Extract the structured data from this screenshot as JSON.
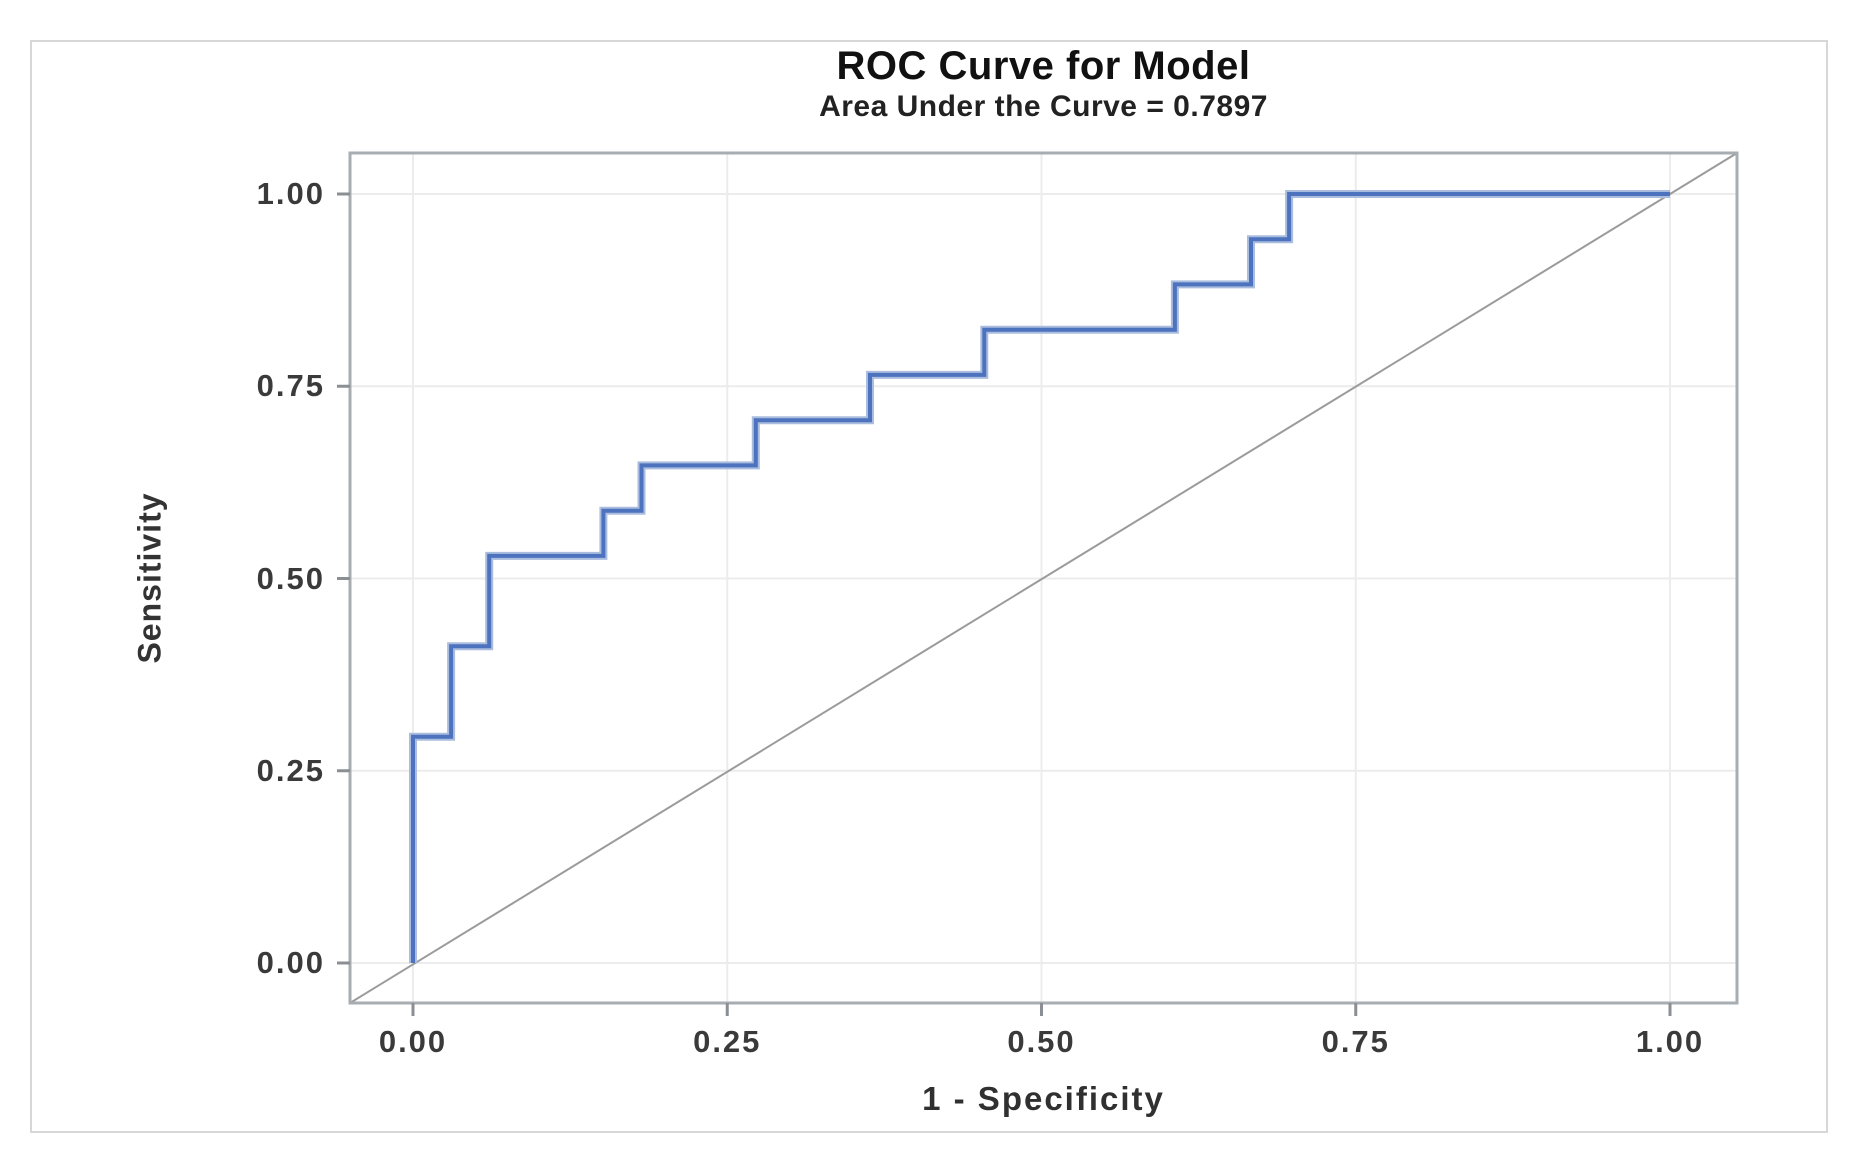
{
  "chart_data": {
    "type": "line",
    "subtype": "roc-step-curve",
    "title": "ROC Curve for Model",
    "subtitle": "Area Under the Curve = 0.7897",
    "auc": 0.7897,
    "xlabel": "1 - Specificity",
    "ylabel": "Sensitivity",
    "xlim": [
      0,
      1
    ],
    "ylim": [
      0,
      1
    ],
    "grid": true,
    "legend": "none",
    "x_ticks": {
      "values": [
        0,
        0.25,
        0.5,
        0.75,
        1
      ],
      "labels": [
        "0.00",
        "0.25",
        "0.50",
        "0.75",
        "1.00"
      ]
    },
    "y_ticks": {
      "values": [
        0,
        0.25,
        0.5,
        0.75,
        1
      ],
      "labels": [
        "0.00",
        "0.25",
        "0.50",
        "0.75",
        "1.00"
      ]
    },
    "reference_line": {
      "name": "chance diagonal",
      "from": [
        0,
        0
      ],
      "to": [
        1,
        1
      ],
      "style": "corner-to-corner"
    },
    "series": [
      {
        "name": "ROC curve",
        "points": [
          [
            0,
            0
          ],
          [
            0,
            0.2941
          ],
          [
            0.0303,
            0.2941
          ],
          [
            0.0303,
            0.4118
          ],
          [
            0.0606,
            0.4118
          ],
          [
            0.0606,
            0.5294
          ],
          [
            0.1515,
            0.5294
          ],
          [
            0.1515,
            0.5882
          ],
          [
            0.1818,
            0.5882
          ],
          [
            0.1818,
            0.6471
          ],
          [
            0.2727,
            0.6471
          ],
          [
            0.2727,
            0.7059
          ],
          [
            0.3636,
            0.7059
          ],
          [
            0.3636,
            0.7647
          ],
          [
            0.4545,
            0.7647
          ],
          [
            0.4545,
            0.8235
          ],
          [
            0.6061,
            0.8235
          ],
          [
            0.6061,
            0.8824
          ],
          [
            0.6667,
            0.8824
          ],
          [
            0.6667,
            0.9412
          ],
          [
            0.697,
            0.9412
          ],
          [
            0.697,
            1
          ],
          [
            1,
            1
          ]
        ]
      }
    ]
  },
  "colors": {
    "curve": "#4e73be",
    "curve_halo": "#aabddf",
    "diagonal": "#9b9b9b",
    "frame": "#a7adb1",
    "grid": "#ececec",
    "tick": "#8b8f94",
    "title_text": "#111111",
    "subtitle_text": "#222222",
    "axis_text": "#3a3a3a",
    "figure_border": "#d7d7d7",
    "background": "#ffffff"
  }
}
